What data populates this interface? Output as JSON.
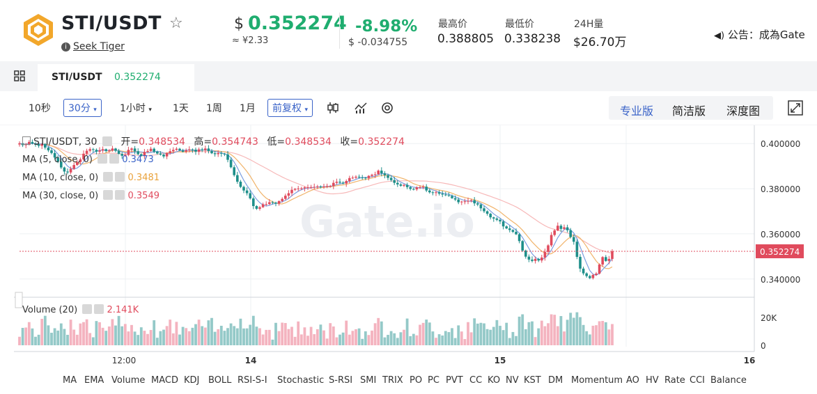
{
  "header": {
    "pair": "STI/USDT",
    "issuer": "Seek Tiger",
    "currency_symbol": "$",
    "price": "0.352274",
    "price_cny": "≈ ¥2.33",
    "change_pct": "-8.98%",
    "change_abs": "$ -0.034755",
    "high_label": "最高价",
    "high_value": "0.388805",
    "low_label": "最低价",
    "low_value": "0.338238",
    "vol_label": "24H量",
    "vol_value": "$26.70万",
    "notice": "公告：成為Gate"
  },
  "tab": {
    "name": "STI/USDT",
    "price": "0.352274"
  },
  "toolbar": {
    "intervals": [
      "10秒",
      "30分",
      "1小时",
      "1天",
      "1周",
      "1月"
    ],
    "adjust": "前复权",
    "modes": [
      "专业版",
      "简洁版",
      "深度图"
    ]
  },
  "legend": {
    "title": "STI/USDT, 30",
    "open_label": "开=",
    "open": "0.348534",
    "high_label": "高=",
    "high": "0.354743",
    "low_label": "低=",
    "low": "0.348534",
    "close_label": "收=",
    "close": "0.352274",
    "ma5_label": "MA (5, close, 0)",
    "ma5": "0.3473",
    "ma10_label": "MA (10, close, 0)",
    "ma10": "0.3481",
    "ma30_label": "MA (30, close, 0)",
    "ma30": "0.3549",
    "vol_label": "Volume (20)",
    "vol": "2.141K"
  },
  "axis": {
    "price_ticks": [
      "0.400000",
      "0.380000",
      "0.360000",
      "0.340000"
    ],
    "last_price": "0.352274",
    "vol_ticks": [
      "20K",
      "0"
    ],
    "time_ticks": [
      "12:00",
      "14",
      "15",
      "16"
    ]
  },
  "watermark": "Gate.io",
  "indicators": [
    "MA",
    "EMA",
    "Volume",
    "MACD",
    "KDJ",
    "BOLL",
    "RSI-S-I",
    "Stochastic",
    "S-RSI",
    "SMI",
    "TRIX",
    "PO",
    "PC",
    "PVT",
    "CC",
    "KO",
    "NV",
    "KST",
    "DM",
    "Momentum",
    "AO",
    "HV",
    "Rate",
    "CCI",
    "Balance"
  ],
  "colors": {
    "up": "#e04b5d",
    "down": "#1e8f8a",
    "accent": "#3a63c8",
    "green": "#1fad6f"
  },
  "chart_data": {
    "type": "candlestick",
    "price_range": [
      0.335,
      0.405
    ],
    "close": [
      0.4001,
      0.3993,
      0.3998,
      0.4007,
      0.4,
      0.3997,
      0.399,
      0.3998,
      0.3982,
      0.397,
      0.3958,
      0.3938,
      0.392,
      0.3894,
      0.3876,
      0.3872,
      0.3888,
      0.3905,
      0.3918,
      0.393,
      0.3955,
      0.3968,
      0.3975,
      0.3972,
      0.3964,
      0.3969,
      0.3975,
      0.3967,
      0.397,
      0.3978,
      0.3968,
      0.3954,
      0.3946,
      0.395,
      0.3972,
      0.3978,
      0.3966,
      0.3953,
      0.3945,
      0.3963,
      0.3967,
      0.3977,
      0.3964,
      0.3956,
      0.3951,
      0.3943,
      0.3958,
      0.3966,
      0.3972,
      0.3977,
      0.397,
      0.3964,
      0.397,
      0.3974,
      0.3973,
      0.3964,
      0.3974,
      0.3971,
      0.3978,
      0.3967,
      0.3957,
      0.3953,
      0.3958,
      0.3955,
      0.3952,
      0.3928,
      0.3895,
      0.386,
      0.3831,
      0.3808,
      0.3792,
      0.378,
      0.3757,
      0.3723,
      0.3711,
      0.3718,
      0.3731,
      0.3732,
      0.374,
      0.3738,
      0.3734,
      0.3745,
      0.3755,
      0.3769,
      0.378,
      0.3795,
      0.3799,
      0.3801,
      0.3802,
      0.3806,
      0.3806,
      0.3807,
      0.3808,
      0.381,
      0.3809,
      0.381,
      0.3812,
      0.3812,
      0.3826,
      0.3831,
      0.3827,
      0.3823,
      0.3834,
      0.3847,
      0.3849,
      0.3853,
      0.385,
      0.3849,
      0.3847,
      0.3857,
      0.3862,
      0.3864,
      0.388,
      0.3868,
      0.386,
      0.3848,
      0.3838,
      0.3826,
      0.3819,
      0.3813,
      0.3817,
      0.3807,
      0.3799,
      0.3797,
      0.3806,
      0.3807,
      0.3809,
      0.3792,
      0.3784,
      0.3781,
      0.3784,
      0.3778,
      0.3774,
      0.3771,
      0.3768,
      0.3758,
      0.3752,
      0.374,
      0.3743,
      0.3744,
      0.3746,
      0.3749,
      0.3735,
      0.373,
      0.3713,
      0.37,
      0.3689,
      0.3673,
      0.3668,
      0.3662,
      0.3655,
      0.3633,
      0.3624,
      0.3617,
      0.3609,
      0.3598,
      0.3568,
      0.3526,
      0.3499,
      0.3486,
      0.348,
      0.3489,
      0.3482,
      0.3495,
      0.352,
      0.3549,
      0.3595,
      0.3615,
      0.3636,
      0.3622,
      0.3629,
      0.3616,
      0.3586,
      0.3565,
      0.3498,
      0.3446,
      0.3425,
      0.3413,
      0.3404,
      0.3418,
      0.3424,
      0.3464,
      0.3497,
      0.348,
      0.3489,
      0.3523
    ],
    "volume_scale": [
      0,
      30
    ]
  }
}
